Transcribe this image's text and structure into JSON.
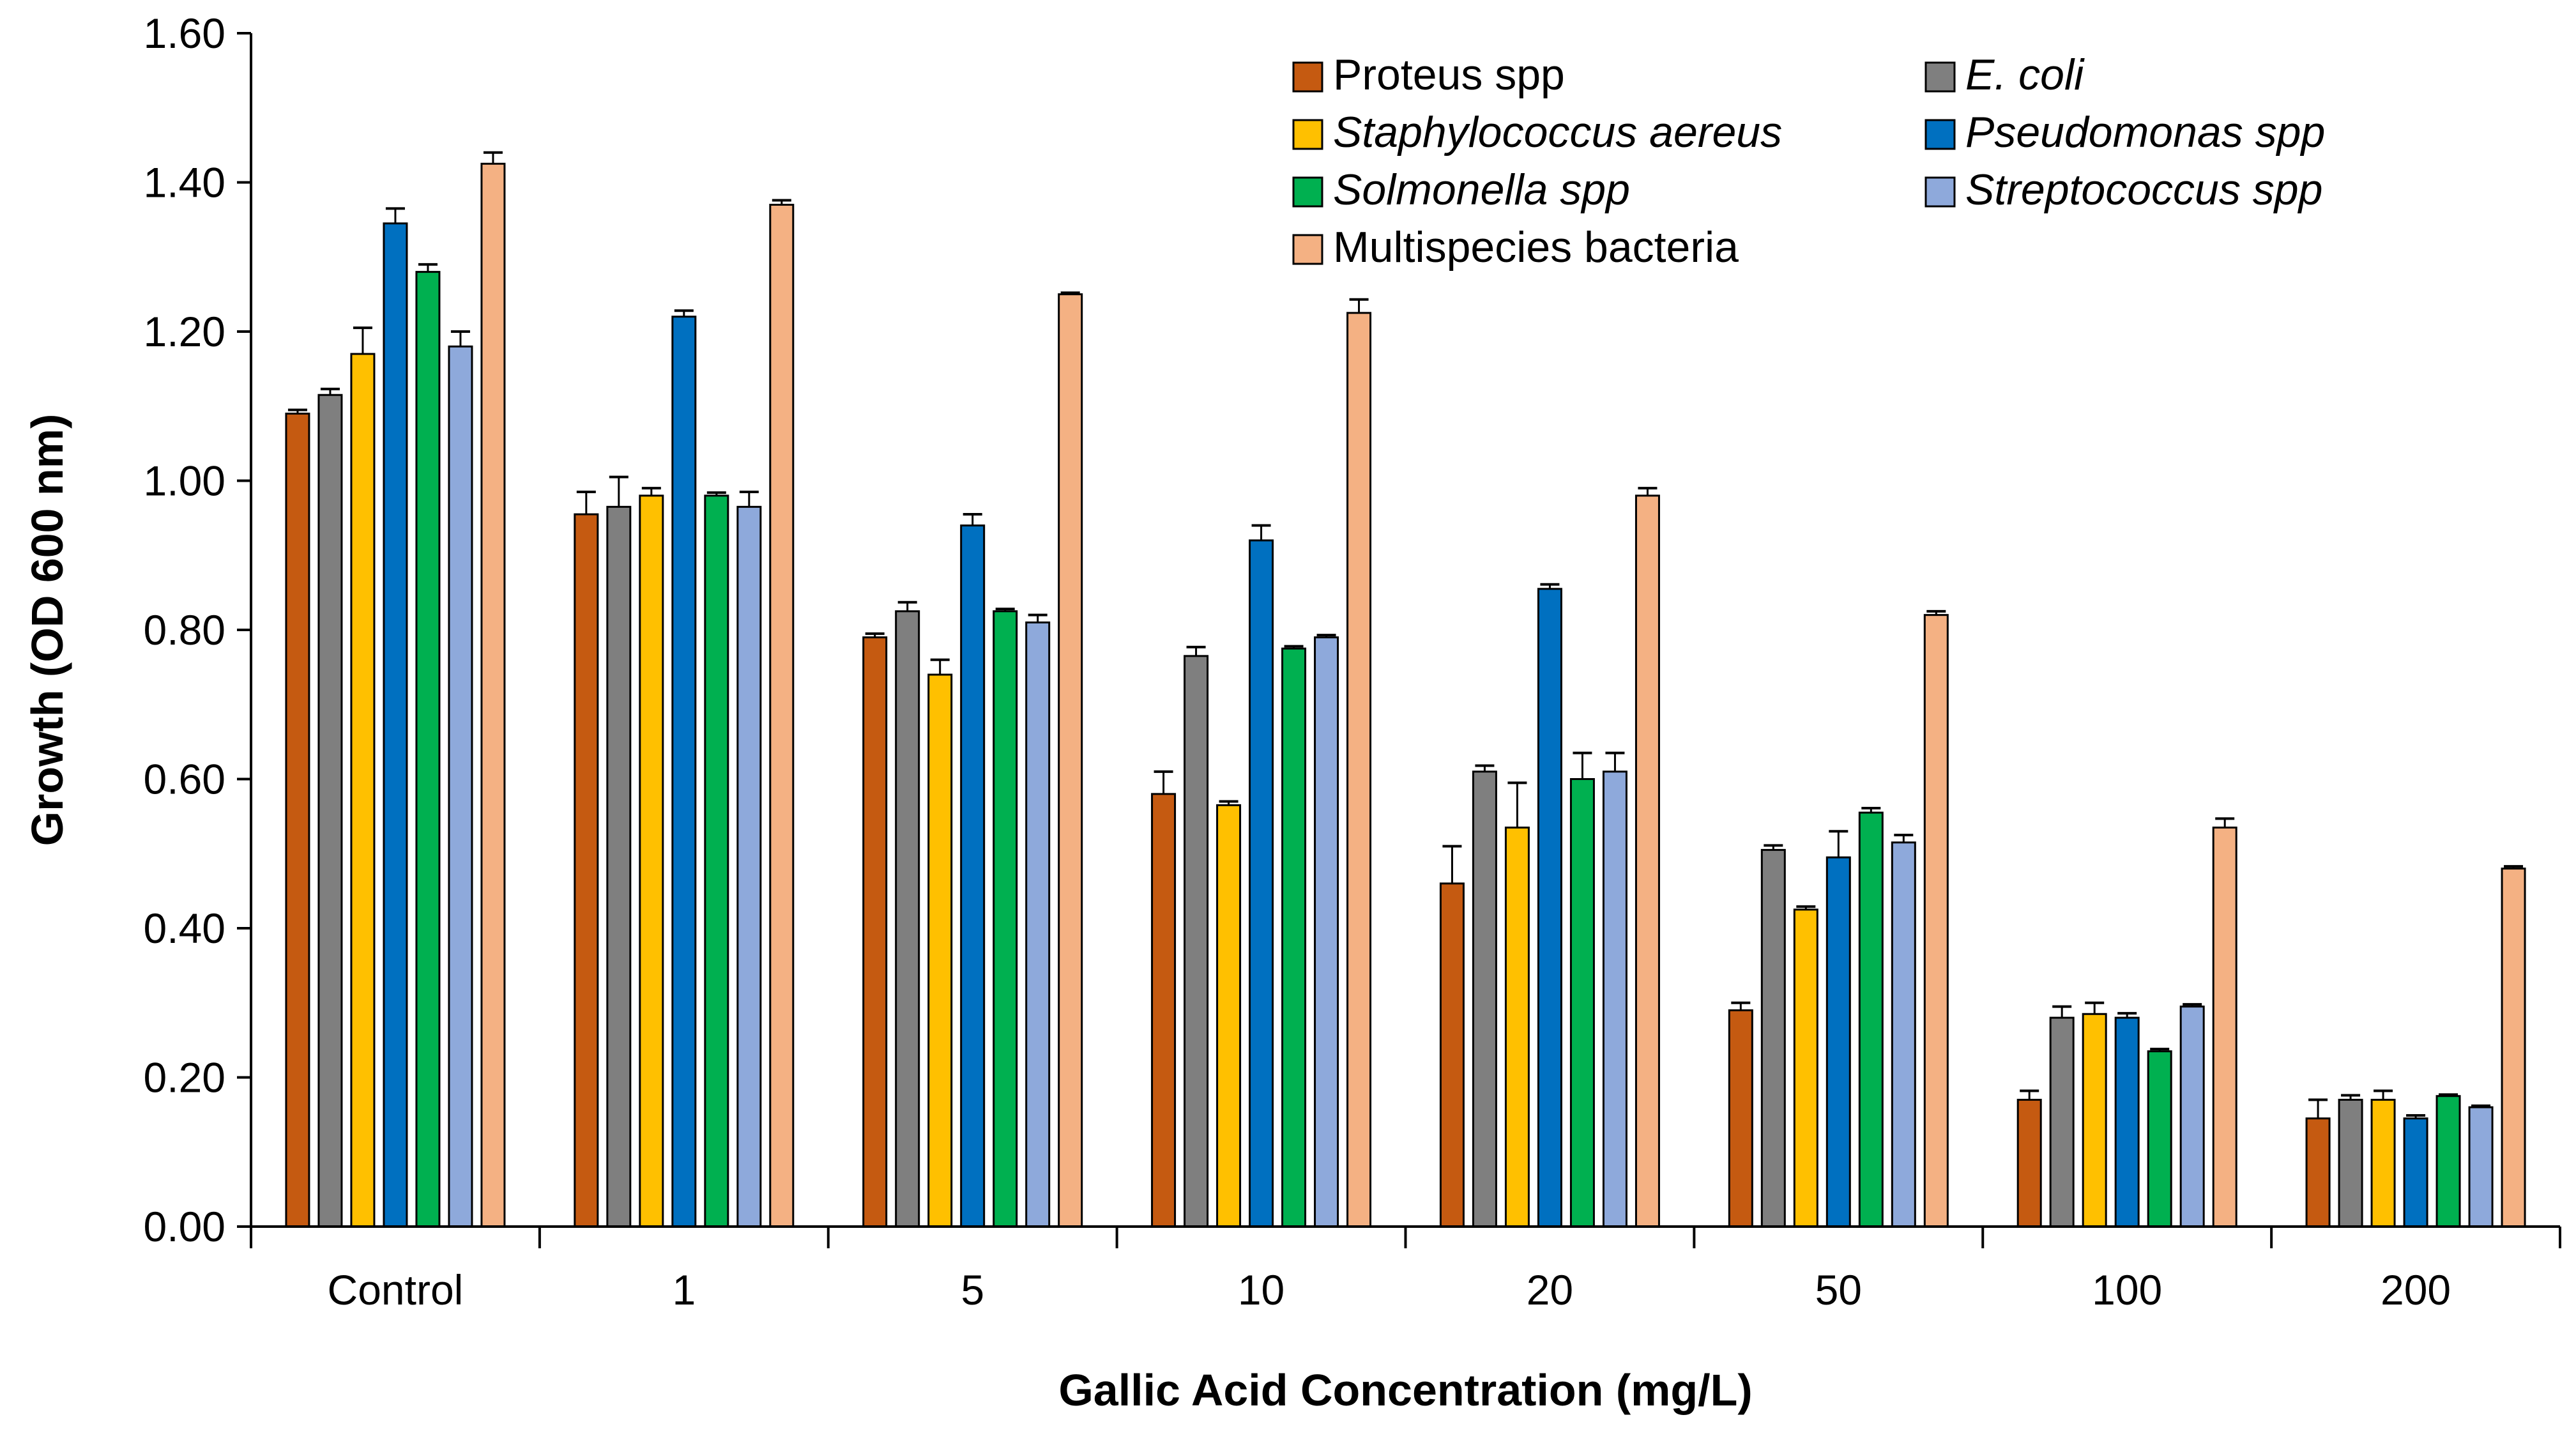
{
  "chart_data": {
    "type": "bar",
    "title": "",
    "xlabel": "Gallic Acid Concentration (mg/L)",
    "ylabel": "Growth (OD 600 nm)",
    "ylim": [
      0,
      1.6
    ],
    "yticks": [
      "0.00",
      "0.20",
      "0.40",
      "0.60",
      "0.80",
      "1.00",
      "1.20",
      "1.40",
      "1.60"
    ],
    "categories": [
      "Control",
      "1",
      "5",
      "10",
      "20",
      "50",
      "100",
      "200"
    ],
    "legend_position": "top-right",
    "grid": false,
    "series": [
      {
        "name": "Proteus spp",
        "italic": false,
        "color": "#C55A11",
        "values": [
          1.09,
          0.955,
          0.79,
          0.58,
          0.46,
          0.29,
          0.17,
          0.145
        ],
        "errors": [
          0.005,
          0.03,
          0.005,
          0.03,
          0.05,
          0.01,
          0.012,
          0.025
        ]
      },
      {
        "name": "E. coli",
        "italic": true,
        "color": "#7F7F7F",
        "values": [
          1.115,
          0.965,
          0.825,
          0.765,
          0.61,
          0.505,
          0.28,
          0.17
        ],
        "errors": [
          0.008,
          0.04,
          0.012,
          0.012,
          0.008,
          0.006,
          0.015,
          0.006
        ]
      },
      {
        "name": "Staphylococcus aereus",
        "italic": true,
        "color": "#FFC000",
        "values": [
          1.17,
          0.98,
          0.74,
          0.565,
          0.535,
          0.425,
          0.285,
          0.17
        ],
        "errors": [
          0.035,
          0.01,
          0.02,
          0.005,
          0.06,
          0.004,
          0.015,
          0.012
        ]
      },
      {
        "name": "Pseudomonas spp",
        "italic": true,
        "color": "#0070C0",
        "values": [
          1.345,
          1.22,
          0.94,
          0.92,
          0.855,
          0.495,
          0.28,
          0.145
        ],
        "errors": [
          0.02,
          0.008,
          0.015,
          0.02,
          0.006,
          0.035,
          0.006,
          0.004
        ]
      },
      {
        "name": "Solmonella spp",
        "italic": true,
        "color": "#00B050",
        "values": [
          1.28,
          0.98,
          0.825,
          0.775,
          0.6,
          0.555,
          0.235,
          0.175
        ],
        "errors": [
          0.01,
          0.004,
          0.003,
          0.003,
          0.035,
          0.006,
          0.003,
          0.002
        ]
      },
      {
        "name": "Streptococcus spp",
        "italic": true,
        "color": "#8EA9DB",
        "values": [
          1.18,
          0.965,
          0.81,
          0.79,
          0.61,
          0.515,
          0.295,
          0.16
        ],
        "errors": [
          0.02,
          0.02,
          0.01,
          0.003,
          0.025,
          0.01,
          0.003,
          0.002
        ]
      },
      {
        "name": "Multispecies bacteria",
        "italic": false,
        "color": "#F4B183",
        "values": [
          1.425,
          1.37,
          1.25,
          1.225,
          0.98,
          0.82,
          0.535,
          0.48
        ],
        "errors": [
          0.015,
          0.006,
          0.002,
          0.018,
          0.01,
          0.005,
          0.012,
          0.003
        ]
      }
    ]
  }
}
